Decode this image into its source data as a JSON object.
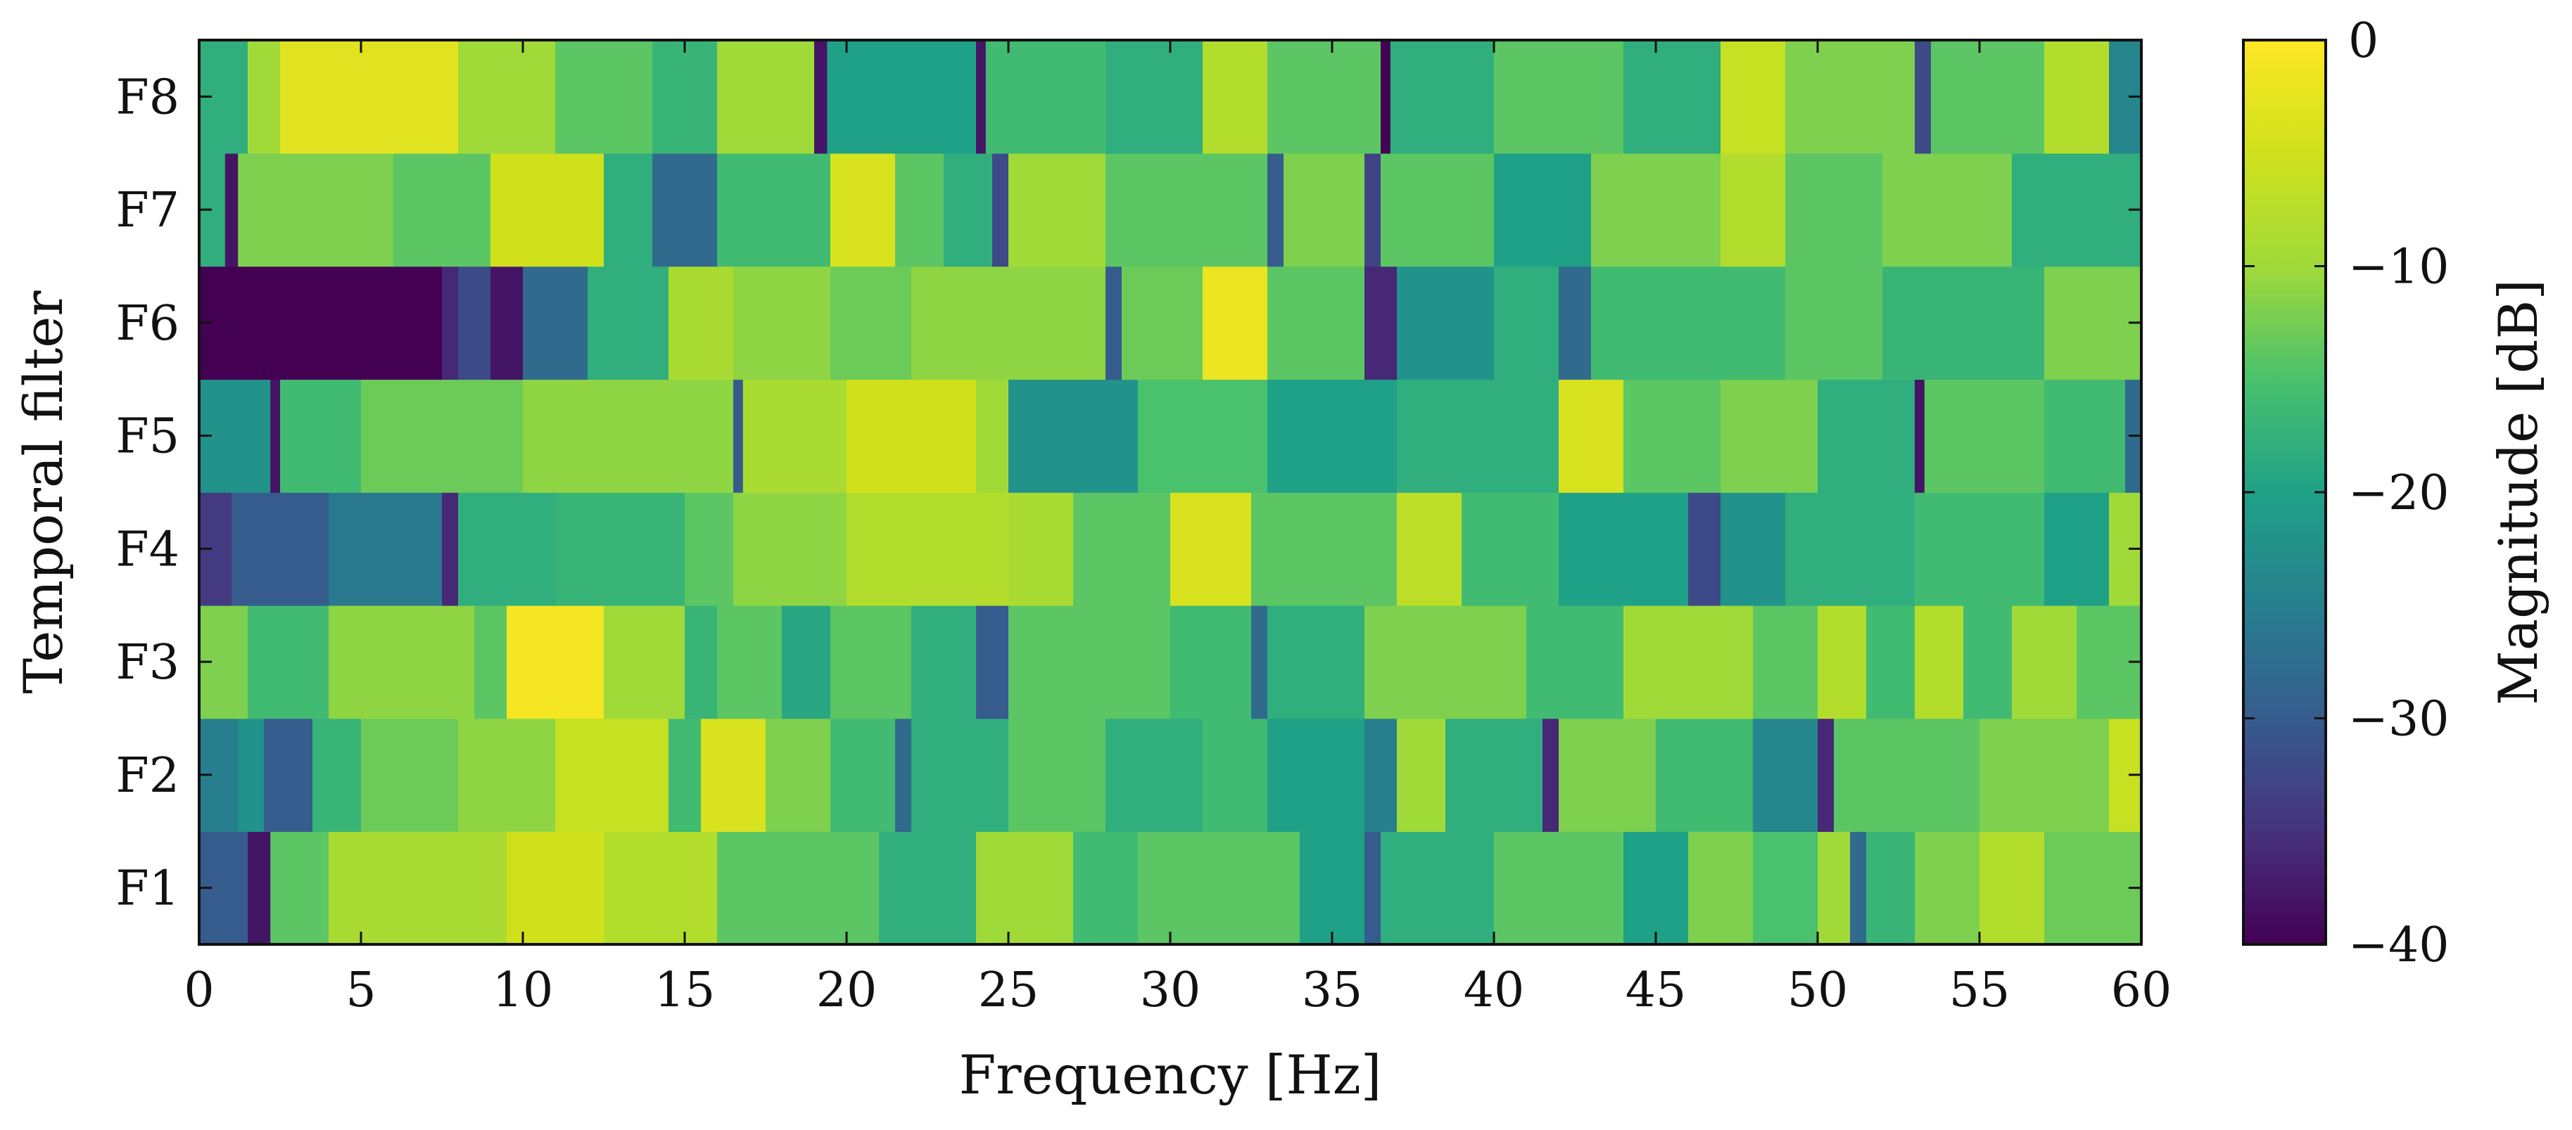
{
  "chart_data": {
    "type": "heatmap",
    "xlabel": "Frequency [Hz]",
    "ylabel": "Temporal filter",
    "colorbar_label": "Magnitude [dB]",
    "colormap": "viridis",
    "xlim": [
      0,
      60
    ],
    "clim": [
      -40,
      0
    ],
    "x_ticks": [
      0,
      5,
      10,
      15,
      20,
      25,
      30,
      35,
      40,
      45,
      50,
      55,
      60
    ],
    "colorbar_ticks": [
      0,
      -10,
      -20,
      -30,
      -40
    ],
    "colorbar_tick_labels": [
      "0",
      "−10",
      "−20",
      "−30",
      "−40"
    ],
    "rows": [
      "F1",
      "F2",
      "F3",
      "F4",
      "F5",
      "F6",
      "F7",
      "F8"
    ],
    "series": [
      {
        "name": "F1",
        "segments": [
          [
            0,
            1.5,
            -30
          ],
          [
            1.5,
            2.2,
            -38
          ],
          [
            2.2,
            4,
            -14
          ],
          [
            4,
            9.5,
            -9
          ],
          [
            9.5,
            12.5,
            -5
          ],
          [
            12.5,
            16,
            -8
          ],
          [
            16,
            21,
            -14
          ],
          [
            21,
            24,
            -18
          ],
          [
            24,
            27,
            -10
          ],
          [
            27,
            29,
            -16
          ],
          [
            29,
            34,
            -14
          ],
          [
            34,
            36,
            -20
          ],
          [
            36,
            36.5,
            -30
          ],
          [
            36.5,
            40,
            -18
          ],
          [
            40,
            44,
            -14
          ],
          [
            44,
            46,
            -20
          ],
          [
            46,
            48,
            -12
          ],
          [
            48,
            50,
            -15
          ],
          [
            50,
            51,
            -10
          ],
          [
            51,
            51.5,
            -28
          ],
          [
            51.5,
            53,
            -17
          ],
          [
            53,
            55,
            -12
          ],
          [
            55,
            57,
            -8
          ],
          [
            57,
            60,
            -13
          ]
        ]
      },
      {
        "name": "F2",
        "segments": [
          [
            0,
            1.2,
            -25
          ],
          [
            1.2,
            2,
            -22
          ],
          [
            2,
            3.5,
            -30
          ],
          [
            3.5,
            5,
            -17
          ],
          [
            5,
            8,
            -13
          ],
          [
            8,
            11,
            -11
          ],
          [
            11,
            14.5,
            -6
          ],
          [
            14.5,
            15.5,
            -16
          ],
          [
            15.5,
            17.5,
            -4
          ],
          [
            17.5,
            19.5,
            -12
          ],
          [
            19.5,
            21.5,
            -16
          ],
          [
            21.5,
            22,
            -28
          ],
          [
            22,
            25,
            -18
          ],
          [
            25,
            28,
            -14
          ],
          [
            28,
            31,
            -18
          ],
          [
            31,
            33,
            -16
          ],
          [
            33,
            36,
            -20
          ],
          [
            36,
            37,
            -25
          ],
          [
            37,
            38.5,
            -10
          ],
          [
            38.5,
            41.5,
            -18
          ],
          [
            41.5,
            42,
            -36
          ],
          [
            42,
            45,
            -12
          ],
          [
            45,
            48,
            -16
          ],
          [
            48,
            50,
            -24
          ],
          [
            50,
            50.5,
            -36
          ],
          [
            50.5,
            55,
            -14
          ],
          [
            55,
            59,
            -12
          ],
          [
            59,
            60,
            -6
          ]
        ]
      },
      {
        "name": "F3",
        "segments": [
          [
            0,
            1.5,
            -12
          ],
          [
            1.5,
            4,
            -16
          ],
          [
            4,
            8.5,
            -11
          ],
          [
            8.5,
            9.5,
            -14
          ],
          [
            9.5,
            12.5,
            -1
          ],
          [
            12.5,
            15,
            -10
          ],
          [
            15,
            16,
            -17
          ],
          [
            16,
            18,
            -14
          ],
          [
            18,
            19.5,
            -19
          ],
          [
            19.5,
            22,
            -14
          ],
          [
            22,
            24,
            -18
          ],
          [
            24,
            25,
            -30
          ],
          [
            25,
            30,
            -14
          ],
          [
            30,
            32.5,
            -16
          ],
          [
            32.5,
            33,
            -28
          ],
          [
            33,
            36,
            -18
          ],
          [
            36,
            41,
            -12
          ],
          [
            41,
            44,
            -16
          ],
          [
            44,
            48,
            -10
          ],
          [
            48,
            50,
            -14
          ],
          [
            50,
            51.5,
            -8
          ],
          [
            51.5,
            53,
            -16
          ],
          [
            53,
            54.5,
            -8
          ],
          [
            54.5,
            56,
            -16
          ],
          [
            56,
            58,
            -10
          ],
          [
            58,
            60,
            -14
          ]
        ]
      },
      {
        "name": "F4",
        "segments": [
          [
            0,
            1,
            -34
          ],
          [
            1,
            4,
            -30
          ],
          [
            4,
            7.5,
            -26
          ],
          [
            7.5,
            8,
            -36
          ],
          [
            8,
            11,
            -18
          ],
          [
            11,
            15,
            -17
          ],
          [
            15,
            16.5,
            -14
          ],
          [
            16.5,
            20,
            -11
          ],
          [
            20,
            25,
            -8
          ],
          [
            25,
            27,
            -9
          ],
          [
            27,
            30,
            -14
          ],
          [
            30,
            32.5,
            -4
          ],
          [
            32.5,
            37,
            -14
          ],
          [
            37,
            39,
            -7
          ],
          [
            39,
            42,
            -16
          ],
          [
            42,
            46,
            -20
          ],
          [
            46,
            47,
            -32
          ],
          [
            47,
            49,
            -22
          ],
          [
            49,
            53,
            -18
          ],
          [
            53,
            57,
            -16
          ],
          [
            57,
            59,
            -20
          ],
          [
            59,
            60,
            -10
          ]
        ]
      },
      {
        "name": "F5",
        "segments": [
          [
            0,
            2.2,
            -22
          ],
          [
            2.2,
            2.5,
            -38
          ],
          [
            2.5,
            5,
            -16
          ],
          [
            5,
            10,
            -13
          ],
          [
            10,
            16.5,
            -11
          ],
          [
            16.5,
            16.8,
            -30
          ],
          [
            16.8,
            20,
            -9
          ],
          [
            20,
            24,
            -5
          ],
          [
            24,
            25,
            -10
          ],
          [
            25,
            29,
            -22
          ],
          [
            29,
            33,
            -15
          ],
          [
            33,
            37,
            -20
          ],
          [
            37,
            42,
            -18
          ],
          [
            42,
            44,
            -4
          ],
          [
            44,
            47,
            -14
          ],
          [
            47,
            50,
            -12
          ],
          [
            50,
            53,
            -18
          ],
          [
            53,
            53.3,
            -38
          ],
          [
            53.3,
            57,
            -14
          ],
          [
            57,
            59.5,
            -16
          ],
          [
            59.5,
            60,
            -28
          ]
        ]
      },
      {
        "name": "F6",
        "segments": [
          [
            0,
            7.5,
            -40
          ],
          [
            7.5,
            8,
            -36
          ],
          [
            8,
            9,
            -32
          ],
          [
            9,
            10,
            -38
          ],
          [
            10,
            12,
            -28
          ],
          [
            12,
            14.5,
            -18
          ],
          [
            14.5,
            16.5,
            -9
          ],
          [
            16.5,
            19.5,
            -11
          ],
          [
            19.5,
            22,
            -13
          ],
          [
            22,
            28,
            -11
          ],
          [
            28,
            28.5,
            -30
          ],
          [
            28.5,
            31,
            -13
          ],
          [
            31,
            33,
            -2
          ],
          [
            33,
            36,
            -14
          ],
          [
            36,
            37,
            -36
          ],
          [
            37,
            40,
            -22
          ],
          [
            40,
            42,
            -18
          ],
          [
            42,
            43,
            -28
          ],
          [
            43,
            49,
            -16
          ],
          [
            49,
            52,
            -14
          ],
          [
            52,
            57,
            -17
          ],
          [
            57,
            60,
            -12
          ]
        ]
      },
      {
        "name": "F7",
        "segments": [
          [
            0,
            0.8,
            -18
          ],
          [
            0.8,
            1.2,
            -38
          ],
          [
            1.2,
            6,
            -12
          ],
          [
            6,
            9,
            -14
          ],
          [
            9,
            12.5,
            -5
          ],
          [
            12.5,
            14,
            -18
          ],
          [
            14,
            16,
            -28
          ],
          [
            16,
            19.5,
            -16
          ],
          [
            19.5,
            21.5,
            -4
          ],
          [
            21.5,
            23,
            -14
          ],
          [
            23,
            24.5,
            -18
          ],
          [
            24.5,
            25,
            -32
          ],
          [
            25,
            28,
            -10
          ],
          [
            28,
            33,
            -14
          ],
          [
            33,
            33.5,
            -30
          ],
          [
            33.5,
            36,
            -12
          ],
          [
            36,
            36.5,
            -33
          ],
          [
            36.5,
            40,
            -14
          ],
          [
            40,
            43,
            -20
          ],
          [
            43,
            47,
            -12
          ],
          [
            47,
            49,
            -8
          ],
          [
            49,
            52,
            -14
          ],
          [
            52,
            56,
            -12
          ],
          [
            56,
            60,
            -18
          ]
        ]
      },
      {
        "name": "F8",
        "segments": [
          [
            0,
            1.5,
            -18
          ],
          [
            1.5,
            2.5,
            -10
          ],
          [
            2.5,
            8,
            -3
          ],
          [
            8,
            11,
            -10
          ],
          [
            11,
            14,
            -14
          ],
          [
            14,
            16,
            -17
          ],
          [
            16,
            19,
            -10
          ],
          [
            19,
            19.4,
            -38
          ],
          [
            19.4,
            24,
            -20
          ],
          [
            24,
            24.3,
            -38
          ],
          [
            24.3,
            28,
            -16
          ],
          [
            28,
            31,
            -18
          ],
          [
            31,
            33,
            -8
          ],
          [
            33,
            36.5,
            -14
          ],
          [
            36.5,
            36.8,
            -40
          ],
          [
            36.8,
            40,
            -18
          ],
          [
            40,
            44,
            -14
          ],
          [
            44,
            47,
            -18
          ],
          [
            47,
            49,
            -6
          ],
          [
            49,
            53,
            -12
          ],
          [
            53,
            53.5,
            -32
          ],
          [
            53.5,
            57,
            -14
          ],
          [
            57,
            59,
            -8
          ],
          [
            59,
            60,
            -24
          ]
        ]
      }
    ]
  }
}
